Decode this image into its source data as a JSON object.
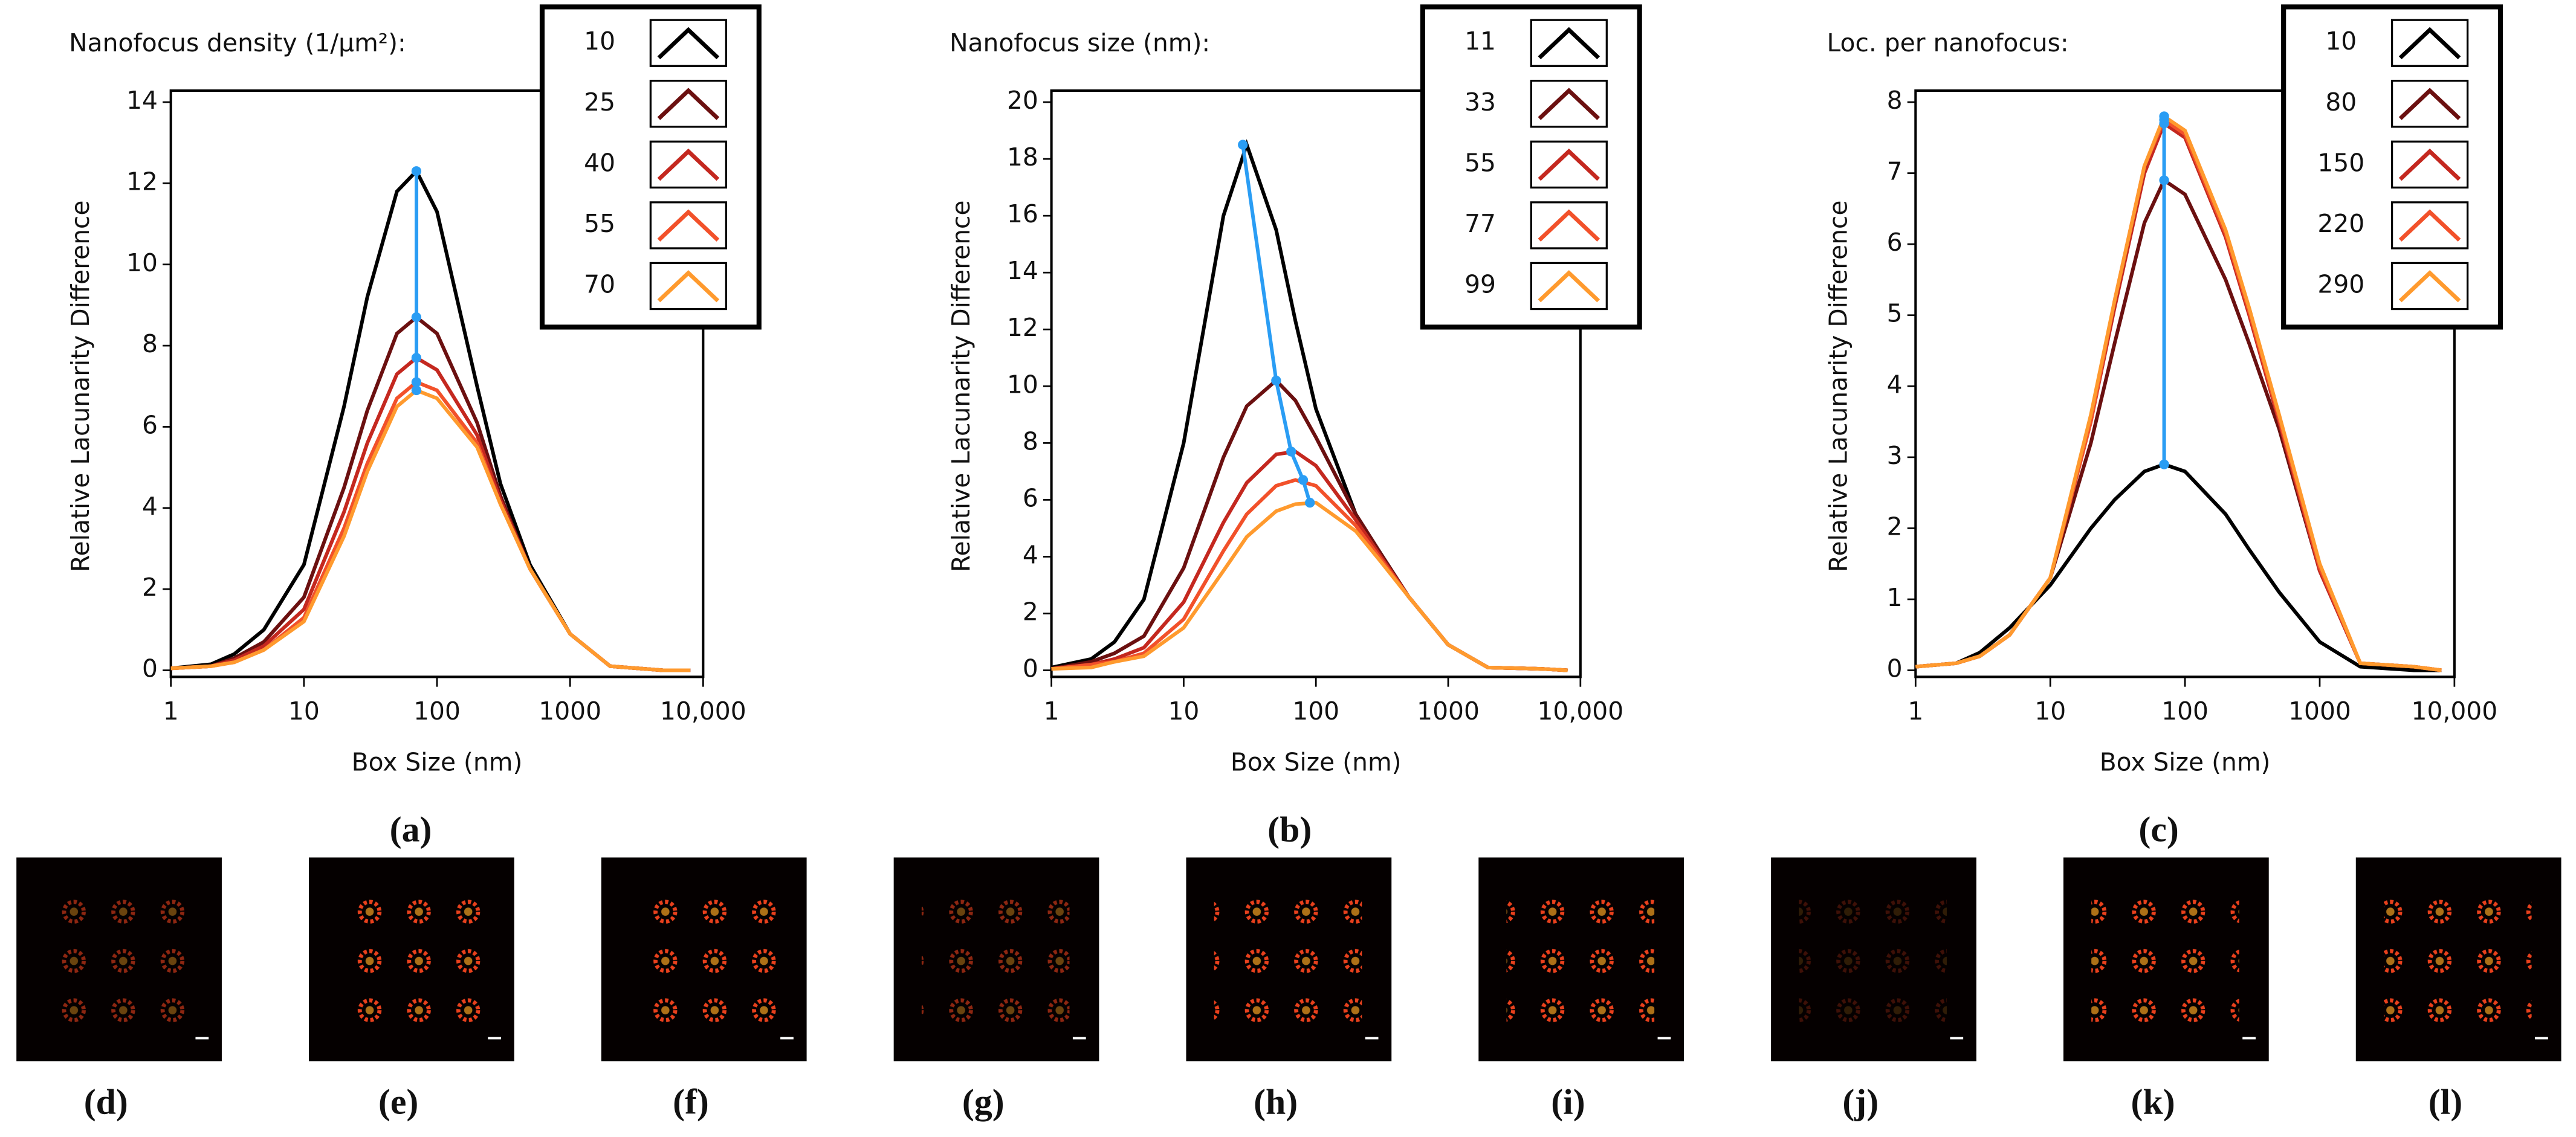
{
  "chart_data": [
    {
      "type": "line",
      "title": "Nanofocus density (1/μm²):",
      "caption": "(a)",
      "xlabel": "Box Size (nm)",
      "ylabel": "Relative Lacunarity Difference",
      "xscale": "log",
      "grid": false,
      "legend": "upper right",
      "xlim": [
        1,
        10000
      ],
      "xticks": [
        1,
        10,
        100,
        1000,
        {
          "value": 10000,
          "label": "10,000"
        }
      ],
      "ylim": [
        0,
        14
      ],
      "yticks": [
        0,
        2,
        4,
        6,
        8,
        10,
        12,
        14
      ],
      "x": [
        1,
        2,
        3,
        5,
        10,
        20,
        30,
        50,
        70,
        100,
        200,
        300,
        500,
        1000,
        2000,
        5000,
        8000
      ],
      "series": [
        {
          "name": "10",
          "color": "#000000",
          "values": [
            0.05,
            0.15,
            0.4,
            1.0,
            2.6,
            6.5,
            9.2,
            11.8,
            12.3,
            11.3,
            7.0,
            4.6,
            2.6,
            0.9,
            0.1,
            0,
            0
          ]
        },
        {
          "name": "25",
          "color": "#6b1010",
          "values": [
            0.05,
            0.1,
            0.3,
            0.7,
            1.8,
            4.5,
            6.4,
            8.3,
            8.7,
            8.3,
            6.1,
            4.3,
            2.5,
            0.9,
            0.1,
            0,
            0
          ]
        },
        {
          "name": "40",
          "color": "#c4281f",
          "values": [
            0.05,
            0.1,
            0.25,
            0.6,
            1.5,
            3.9,
            5.6,
            7.3,
            7.7,
            7.4,
            5.8,
            4.2,
            2.5,
            0.9,
            0.1,
            0,
            0
          ]
        },
        {
          "name": "55",
          "color": "#f2512a",
          "values": [
            0.05,
            0.1,
            0.2,
            0.5,
            1.3,
            3.5,
            5.1,
            6.7,
            7.1,
            6.9,
            5.6,
            4.1,
            2.5,
            0.9,
            0.1,
            0,
            0
          ]
        },
        {
          "name": "70",
          "color": "#ff9a2e",
          "values": [
            0.05,
            0.1,
            0.2,
            0.5,
            1.2,
            3.3,
            4.9,
            6.5,
            6.9,
            6.7,
            5.5,
            4.1,
            2.5,
            0.9,
            0.1,
            0,
            0
          ]
        }
      ],
      "peak_line": {
        "color": "#2a9df4",
        "x": [
          70,
          70,
          70,
          70,
          70
        ],
        "values": [
          12.3,
          8.7,
          7.7,
          7.1,
          6.9
        ]
      }
    },
    {
      "type": "line",
      "title": "Nanofocus size (nm):",
      "caption": "(b)",
      "xlabel": "Box Size (nm)",
      "ylabel": "Relative Lacunarity Difference",
      "xscale": "log",
      "grid": false,
      "legend": "upper right",
      "xlim": [
        1,
        10000
      ],
      "xticks": [
        1,
        10,
        100,
        1000,
        {
          "value": 10000,
          "label": "10,000"
        }
      ],
      "ylim": [
        0,
        20
      ],
      "yticks": [
        0,
        2,
        4,
        6,
        8,
        10,
        12,
        14,
        16,
        18,
        20
      ],
      "x": [
        1,
        2,
        3,
        5,
        10,
        20,
        30,
        50,
        70,
        100,
        200,
        300,
        500,
        1000,
        2000,
        5000,
        8000
      ],
      "series": [
        {
          "name": "11",
          "color": "#000000",
          "values": [
            0.1,
            0.4,
            1.0,
            2.5,
            8.0,
            16.0,
            18.5,
            15.5,
            12.3,
            9.2,
            5.5,
            4.2,
            2.6,
            0.9,
            0.1,
            0.05,
            0
          ]
        },
        {
          "name": "33",
          "color": "#6b1010",
          "values": [
            0.05,
            0.3,
            0.6,
            1.2,
            3.6,
            7.5,
            9.3,
            10.2,
            9.5,
            8.2,
            5.5,
            4.2,
            2.6,
            0.9,
            0.1,
            0.05,
            0
          ]
        },
        {
          "name": "55",
          "color": "#c4281f",
          "values": [
            0.05,
            0.2,
            0.4,
            0.8,
            2.4,
            5.2,
            6.6,
            7.6,
            7.7,
            7.2,
            5.3,
            4.1,
            2.6,
            0.9,
            0.1,
            0.05,
            0
          ]
        },
        {
          "name": "77",
          "color": "#f2512a",
          "values": [
            0.05,
            0.2,
            0.3,
            0.6,
            1.8,
            4.2,
            5.5,
            6.5,
            6.7,
            6.5,
            5.1,
            4.0,
            2.6,
            0.9,
            0.1,
            0.05,
            0
          ]
        },
        {
          "name": "99",
          "color": "#ff9a2e",
          "values": [
            0.05,
            0.1,
            0.3,
            0.5,
            1.5,
            3.5,
            4.7,
            5.6,
            5.85,
            5.9,
            4.9,
            3.9,
            2.6,
            0.9,
            0.1,
            0.05,
            0
          ]
        }
      ],
      "peak_line": {
        "color": "#2a9df4",
        "x": [
          28,
          50,
          65,
          80,
          90
        ],
        "values": [
          18.5,
          10.2,
          7.7,
          6.7,
          5.9
        ]
      }
    },
    {
      "type": "line",
      "title": "Loc. per nanofocus:",
      "caption": "(c)",
      "xlabel": "Box Size (nm)",
      "ylabel": "Relative Lacunarity Difference",
      "xscale": "log",
      "grid": false,
      "legend": "upper right",
      "xlim": [
        1,
        10000
      ],
      "xticks": [
        1,
        10,
        100,
        1000,
        {
          "value": 10000,
          "label": "10,000"
        }
      ],
      "ylim": [
        0,
        8
      ],
      "yticks": [
        0,
        1,
        2,
        3,
        4,
        5,
        6,
        7,
        8
      ],
      "x": [
        1,
        2,
        3,
        5,
        10,
        20,
        30,
        50,
        70,
        100,
        200,
        300,
        500,
        1000,
        2000,
        5000,
        8000
      ],
      "series": [
        {
          "name": "10",
          "color": "#000000",
          "values": [
            0.05,
            0.1,
            0.25,
            0.6,
            1.2,
            2.0,
            2.4,
            2.8,
            2.9,
            2.8,
            2.2,
            1.7,
            1.1,
            0.4,
            0.05,
            0,
            0
          ]
        },
        {
          "name": "80",
          "color": "#6b1010",
          "values": [
            0.05,
            0.1,
            0.2,
            0.5,
            1.3,
            3.2,
            4.6,
            6.3,
            6.9,
            6.7,
            5.5,
            4.6,
            3.4,
            1.4,
            0.1,
            0.05,
            0
          ]
        },
        {
          "name": "150",
          "color": "#c4281f",
          "values": [
            0.05,
            0.1,
            0.2,
            0.5,
            1.3,
            3.5,
            5.1,
            7.0,
            7.7,
            7.5,
            6.1,
            5.0,
            3.5,
            1.4,
            0.1,
            0.05,
            0
          ]
        },
        {
          "name": "220",
          "color": "#f2512a",
          "values": [
            0.05,
            0.1,
            0.2,
            0.5,
            1.3,
            3.5,
            5.2,
            7.1,
            7.75,
            7.55,
            6.15,
            5.05,
            3.55,
            1.45,
            0.1,
            0.05,
            0
          ]
        },
        {
          "name": "290",
          "color": "#ff9a2e",
          "values": [
            0.05,
            0.1,
            0.2,
            0.5,
            1.3,
            3.6,
            5.2,
            7.1,
            7.8,
            7.6,
            6.2,
            5.1,
            3.6,
            1.5,
            0.1,
            0.05,
            0
          ]
        }
      ],
      "peak_line": {
        "color": "#2a9df4",
        "x": [
          70,
          70,
          70,
          70,
          70
        ],
        "values": [
          2.9,
          6.9,
          7.7,
          7.75,
          7.8
        ]
      }
    }
  ],
  "panels": [
    {
      "label": "(d)"
    },
    {
      "label": "(e)"
    },
    {
      "label": "(f)"
    },
    {
      "label": "(g)"
    },
    {
      "label": "(h)"
    },
    {
      "label": "(i)"
    },
    {
      "label": "(j)"
    },
    {
      "label": "(k)"
    },
    {
      "label": "(l)"
    }
  ]
}
